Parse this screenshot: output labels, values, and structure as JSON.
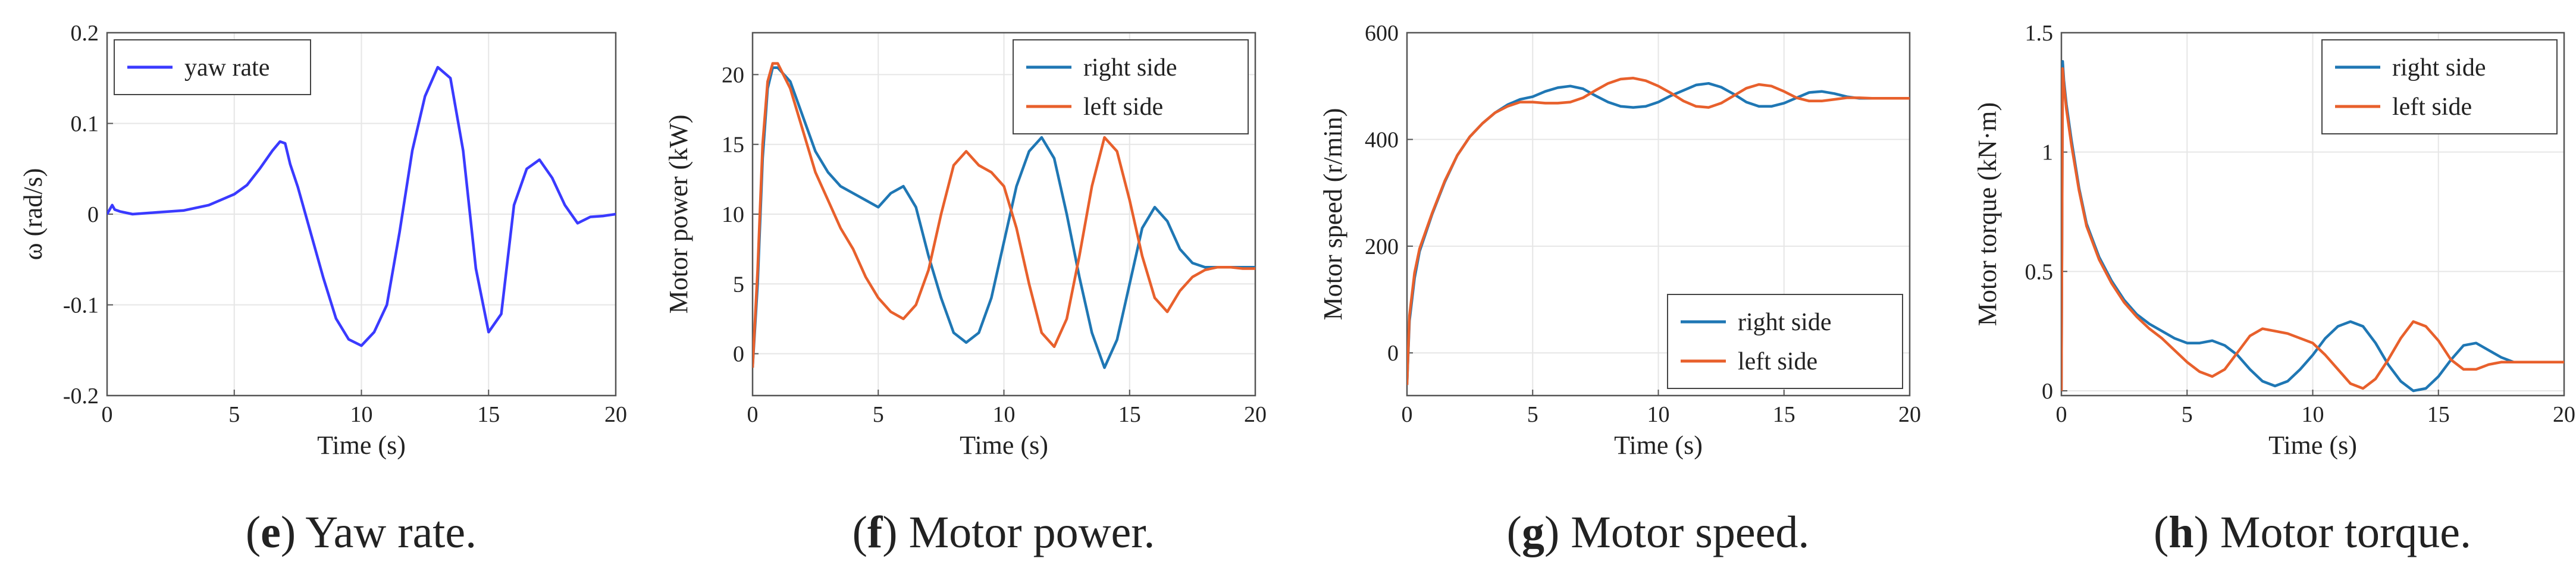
{
  "colors": {
    "yaw": "#3a3aff",
    "right": "#1f77b4",
    "left": "#e8602c",
    "axis": "#555555",
    "grid": "#e6e6e6"
  },
  "chart_data": [
    {
      "id": "e",
      "type": "line",
      "caption_letter": "e",
      "caption_text": " Yaw rate.",
      "title": "",
      "xlabel": "Time (s)",
      "ylabel": "ω (rad/s)",
      "xlim": [
        0,
        20
      ],
      "ylim": [
        -0.2,
        0.2
      ],
      "xticks": [
        0,
        5,
        10,
        15,
        20
      ],
      "xtick_labels": [
        "0",
        "5",
        "10",
        "15",
        "20"
      ],
      "yticks": [
        -0.2,
        -0.1,
        0,
        0.1,
        0.2
      ],
      "ytick_labels": [
        "-0.2",
        "-0.1",
        "0",
        "0.1",
        "0.2"
      ],
      "legend_position": "top-left",
      "series": [
        {
          "name": "yaw rate",
          "color_key": "yaw",
          "x": [
            0,
            0.1,
            0.2,
            0.3,
            0.5,
            1,
            2,
            3,
            4,
            5,
            5.5,
            6,
            6.5,
            6.8,
            7,
            7.2,
            7.5,
            8,
            8.5,
            9,
            9.5,
            10,
            10.5,
            11,
            11.5,
            12,
            12.5,
            13,
            13.5,
            14,
            14.5,
            15,
            15.5,
            16,
            16.5,
            17,
            17.5,
            18,
            18.5,
            19,
            19.5,
            20
          ],
          "values": [
            0,
            0.005,
            0.01,
            0.005,
            0.003,
            0,
            0.002,
            0.004,
            0.01,
            0.022,
            0.032,
            0.05,
            0.07,
            0.08,
            0.078,
            0.055,
            0.03,
            -0.02,
            -0.07,
            -0.115,
            -0.138,
            -0.145,
            -0.13,
            -0.1,
            -0.02,
            0.07,
            0.13,
            0.162,
            0.15,
            0.07,
            -0.06,
            -0.13,
            -0.11,
            0.01,
            0.05,
            0.06,
            0.04,
            0.01,
            -0.01,
            -0.003,
            -0.002,
            0
          ]
        }
      ]
    },
    {
      "id": "f",
      "type": "line",
      "caption_letter": "f",
      "caption_text": " Motor power.",
      "title": "",
      "xlabel": "Time (s)",
      "ylabel": "Motor power (kW)",
      "xlim": [
        0,
        20
      ],
      "ylim": [
        -3,
        23
      ],
      "xticks": [
        0,
        5,
        10,
        15,
        20
      ],
      "xtick_labels": [
        "0",
        "5",
        "10",
        "15",
        "20"
      ],
      "yticks": [
        0,
        5,
        10,
        15,
        20
      ],
      "ytick_labels": [
        "0",
        "5",
        "10",
        "15",
        "20"
      ],
      "legend_position": "top-right",
      "series": [
        {
          "name": "right side",
          "color_key": "right",
          "x": [
            0,
            0.2,
            0.4,
            0.6,
            0.8,
            1,
            1.5,
            2,
            2.5,
            3,
            3.5,
            4,
            4.5,
            5,
            5.5,
            6,
            6.5,
            7,
            7.5,
            8,
            8.5,
            9,
            9.5,
            10,
            10.5,
            11,
            11.5,
            12,
            12.5,
            13,
            13.5,
            14,
            14.5,
            15,
            15.5,
            16,
            16.5,
            17,
            17.5,
            18,
            18.5,
            19,
            19.5,
            20
          ],
          "values": [
            -1,
            5,
            14,
            19,
            20.5,
            20.5,
            19.5,
            17,
            14.5,
            13,
            12,
            11.5,
            11,
            10.5,
            11.5,
            12,
            10.5,
            7,
            4,
            1.5,
            0.8,
            1.5,
            4,
            8,
            12,
            14.5,
            15.5,
            14,
            10,
            5.5,
            1.5,
            -1,
            1,
            5,
            9,
            10.5,
            9.5,
            7.5,
            6.5,
            6.2,
            6.2,
            6.2,
            6.2,
            6.2
          ]
        },
        {
          "name": "left side",
          "color_key": "left",
          "x": [
            0,
            0.2,
            0.4,
            0.6,
            0.8,
            1,
            1.5,
            2,
            2.5,
            3,
            3.5,
            4,
            4.5,
            5,
            5.5,
            6,
            6.5,
            7,
            7.5,
            8,
            8.5,
            9,
            9.5,
            10,
            10.5,
            11,
            11.5,
            12,
            12.5,
            13,
            13.5,
            14,
            14.5,
            15,
            15.5,
            16,
            16.5,
            17,
            17.5,
            18,
            18.5,
            19,
            19.5,
            20
          ],
          "values": [
            -1,
            6,
            15,
            19.5,
            20.8,
            20.8,
            19,
            16,
            13,
            11,
            9,
            7.5,
            5.5,
            4,
            3,
            2.5,
            3.5,
            6,
            10,
            13.5,
            14.5,
            13.5,
            13,
            12,
            9,
            5,
            1.5,
            0.5,
            2.5,
            7,
            12,
            15.5,
            14.5,
            11,
            7,
            4,
            3,
            4.5,
            5.5,
            6,
            6.2,
            6.2,
            6.1,
            6.1
          ]
        }
      ]
    },
    {
      "id": "g",
      "type": "line",
      "caption_letter": "g",
      "caption_text": " Motor speed.",
      "title": "",
      "xlabel": "Time (s)",
      "ylabel": "Motor speed (r/min)",
      "xlim": [
        0,
        20
      ],
      "ylim": [
        -80,
        600
      ],
      "xticks": [
        0,
        5,
        10,
        15,
        20
      ],
      "xtick_labels": [
        "0",
        "5",
        "10",
        "15",
        "20"
      ],
      "yticks": [
        0,
        200,
        400,
        600
      ],
      "ytick_labels": [
        "0",
        "200",
        "400",
        "600"
      ],
      "legend_position": "bottom-right",
      "series": [
        {
          "name": "right side",
          "color_key": "right",
          "x": [
            0,
            0.1,
            0.3,
            0.5,
            1,
            1.5,
            2,
            2.5,
            3,
            3.5,
            4,
            4.5,
            5,
            5.5,
            6,
            6.5,
            7,
            7.5,
            8,
            8.5,
            9,
            9.5,
            10,
            10.5,
            11,
            11.5,
            12,
            12.5,
            13,
            13.5,
            14,
            14.5,
            15,
            15.5,
            16,
            16.5,
            17,
            17.5,
            18,
            18.5,
            19,
            19.5,
            20
          ],
          "values": [
            -60,
            60,
            140,
            190,
            260,
            320,
            370,
            405,
            430,
            450,
            465,
            475,
            480,
            490,
            497,
            500,
            495,
            482,
            470,
            462,
            460,
            462,
            470,
            482,
            492,
            502,
            505,
            498,
            485,
            470,
            462,
            462,
            468,
            478,
            488,
            490,
            486,
            480,
            477,
            477,
            477,
            477,
            477
          ]
        },
        {
          "name": "left side",
          "color_key": "left",
          "x": [
            0,
            0.1,
            0.3,
            0.5,
            1,
            1.5,
            2,
            2.5,
            3,
            3.5,
            4,
            4.5,
            5,
            5.5,
            6,
            6.5,
            7,
            7.5,
            8,
            8.5,
            9,
            9.5,
            10,
            10.5,
            11,
            11.5,
            12,
            12.5,
            13,
            13.5,
            14,
            14.5,
            15,
            15.5,
            16,
            16.5,
            17,
            17.5,
            18,
            18.5,
            19,
            19.5,
            20
          ],
          "values": [
            -60,
            70,
            150,
            195,
            262,
            322,
            370,
            405,
            430,
            450,
            462,
            470,
            470,
            468,
            468,
            470,
            478,
            492,
            505,
            513,
            515,
            510,
            500,
            487,
            472,
            462,
            460,
            468,
            482,
            496,
            503,
            500,
            490,
            478,
            472,
            472,
            475,
            478,
            478,
            477,
            477,
            477,
            477
          ]
        }
      ]
    },
    {
      "id": "h",
      "type": "line",
      "caption_letter": "h",
      "caption_text": " Motor torque.",
      "title": "",
      "xlabel": "Time (s)",
      "ylabel": "Motor torque (kN·m)",
      "xlim": [
        0,
        20
      ],
      "ylim": [
        -0.02,
        1.5
      ],
      "xticks": [
        0,
        5,
        10,
        15,
        20
      ],
      "xtick_labels": [
        "0",
        "5",
        "10",
        "15",
        "20"
      ],
      "yticks": [
        0,
        0.5,
        1,
        1.5
      ],
      "ytick_labels": [
        "0",
        "0.5",
        "1",
        "1.5"
      ],
      "legend_position": "top-right",
      "series": [
        {
          "name": "right side",
          "color_key": "right",
          "x": [
            0,
            0.05,
            0.1,
            0.2,
            0.4,
            0.7,
            1,
            1.5,
            2,
            2.5,
            3,
            3.5,
            4,
            4.5,
            5,
            5.5,
            6,
            6.5,
            7,
            7.5,
            8,
            8.5,
            9,
            9.5,
            10,
            10.5,
            11,
            11.5,
            12,
            12.5,
            13,
            13.5,
            14,
            14.5,
            15,
            15.5,
            16,
            16.5,
            17,
            17.5,
            18,
            18.5,
            19,
            19.5,
            20
          ],
          "values": [
            0,
            1.38,
            1.3,
            1.2,
            1.05,
            0.85,
            0.7,
            0.56,
            0.46,
            0.38,
            0.32,
            0.28,
            0.25,
            0.22,
            0.2,
            0.2,
            0.21,
            0.19,
            0.15,
            0.09,
            0.04,
            0.02,
            0.04,
            0.09,
            0.15,
            0.22,
            0.27,
            0.29,
            0.27,
            0.2,
            0.11,
            0.04,
            0.0,
            0.01,
            0.06,
            0.13,
            0.19,
            0.2,
            0.17,
            0.14,
            0.12,
            0.12,
            0.12,
            0.12,
            0.12
          ]
        },
        {
          "name": "left side",
          "color_key": "left",
          "x": [
            0,
            0.05,
            0.1,
            0.2,
            0.4,
            0.7,
            1,
            1.5,
            2,
            2.5,
            3,
            3.5,
            4,
            4.5,
            5,
            5.5,
            6,
            6.5,
            7,
            7.5,
            8,
            8.5,
            9,
            9.5,
            10,
            10.5,
            11,
            11.5,
            12,
            12.5,
            13,
            13.5,
            14,
            14.5,
            15,
            15.5,
            16,
            16.5,
            17,
            17.5,
            18,
            18.5,
            19,
            19.5,
            20
          ],
          "values": [
            0,
            1.35,
            1.28,
            1.18,
            1.03,
            0.84,
            0.69,
            0.55,
            0.45,
            0.37,
            0.31,
            0.26,
            0.22,
            0.17,
            0.12,
            0.08,
            0.06,
            0.09,
            0.16,
            0.23,
            0.26,
            0.25,
            0.24,
            0.22,
            0.2,
            0.15,
            0.09,
            0.03,
            0.01,
            0.05,
            0.13,
            0.22,
            0.29,
            0.27,
            0.21,
            0.13,
            0.09,
            0.09,
            0.11,
            0.12,
            0.12,
            0.12,
            0.12,
            0.12,
            0.12
          ]
        }
      ]
    }
  ]
}
